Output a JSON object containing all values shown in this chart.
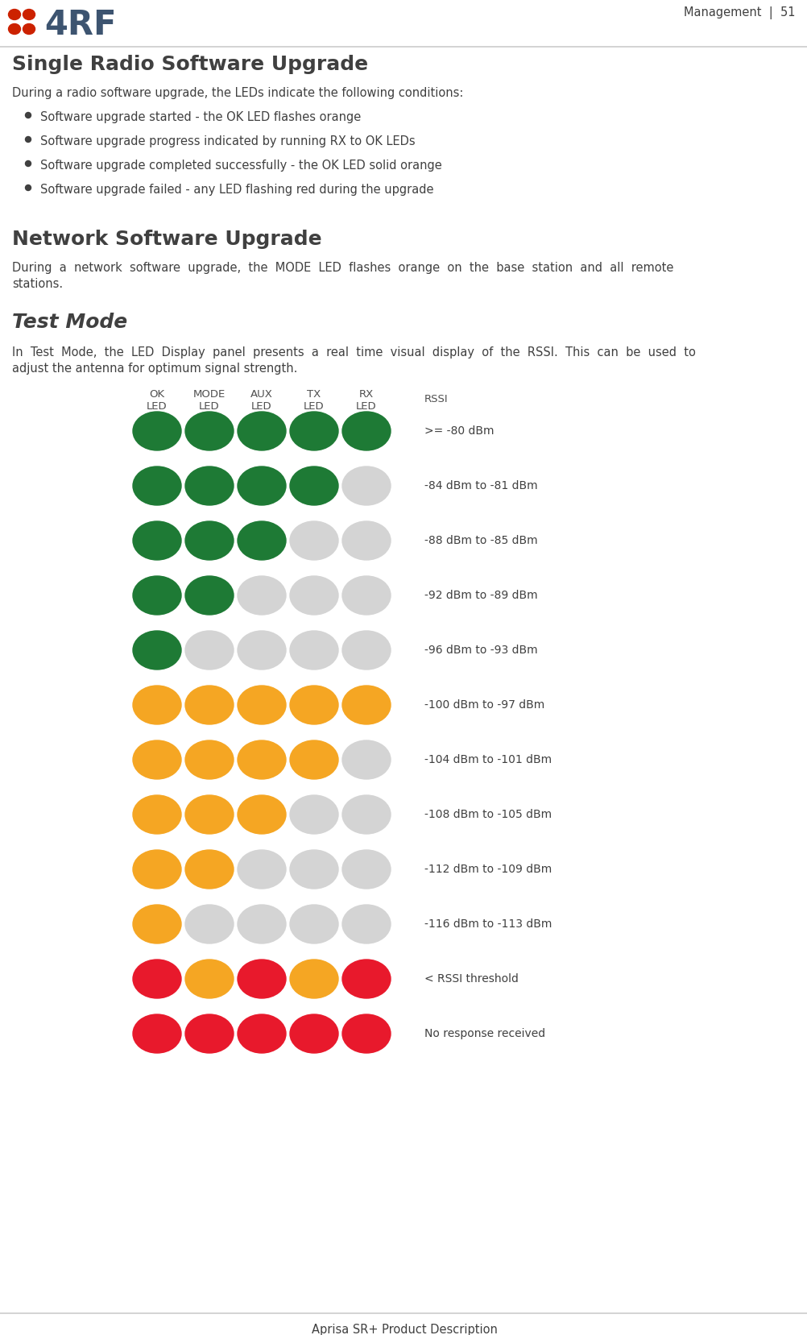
{
  "title_right": "Management  |  51",
  "footer": "Aprisa SR+ Product Description",
  "logo_text": "4RF",
  "heading1": "Single Radio Software Upgrade",
  "para1": "During a radio software upgrade, the LEDs indicate the following conditions:",
  "bullets": [
    "Software upgrade started - the OK LED flashes orange",
    "Software upgrade progress indicated by running RX to OK LEDs",
    "Software upgrade completed successfully - the OK LED solid orange",
    "Software upgrade failed - any LED flashing red during the upgrade"
  ],
  "heading2": "Network Software Upgrade",
  "para2_line1": "During  a  network  software  upgrade,  the  MODE  LED  flashes  orange  on  the  base  station  and  all  remote",
  "para2_line2": "stations.",
  "heading3": "Test Mode",
  "para3_line1": "In  Test  Mode,  the  LED  Display  panel  presents  a  real  time  visual  display  of  the  RSSI.  This  can  be  used  to",
  "para3_line2": "adjust the antenna for optimum signal strength.",
  "col_headers": [
    "OK\nLED",
    "MODE\nLED",
    "AUX\nLED",
    "TX\nLED",
    "RX\nLED",
    "RSSI"
  ],
  "rows": [
    {
      "leds": [
        "green",
        "green",
        "green",
        "green",
        "green"
      ],
      "rssi": ">= -80 dBm"
    },
    {
      "leds": [
        "green",
        "green",
        "green",
        "green",
        "gray"
      ],
      "rssi": "-84 dBm to -81 dBm"
    },
    {
      "leds": [
        "green",
        "green",
        "green",
        "gray",
        "gray"
      ],
      "rssi": "-88 dBm to -85 dBm"
    },
    {
      "leds": [
        "green",
        "green",
        "gray",
        "gray",
        "gray"
      ],
      "rssi": "-92 dBm to -89 dBm"
    },
    {
      "leds": [
        "green",
        "gray",
        "gray",
        "gray",
        "gray"
      ],
      "rssi": "-96 dBm to -93 dBm"
    },
    {
      "leds": [
        "orange",
        "orange",
        "orange",
        "orange",
        "orange"
      ],
      "rssi": "-100 dBm to -97 dBm"
    },
    {
      "leds": [
        "orange",
        "orange",
        "orange",
        "orange",
        "gray"
      ],
      "rssi": "-104 dBm to -101 dBm"
    },
    {
      "leds": [
        "orange",
        "orange",
        "orange",
        "gray",
        "gray"
      ],
      "rssi": "-108 dBm to -105 dBm"
    },
    {
      "leds": [
        "orange",
        "orange",
        "gray",
        "gray",
        "gray"
      ],
      "rssi": "-112 dBm to -109 dBm"
    },
    {
      "leds": [
        "orange",
        "gray",
        "gray",
        "gray",
        "gray"
      ],
      "rssi": "-116 dBm to -113 dBm"
    },
    {
      "leds": [
        "red",
        "orange",
        "red",
        "orange",
        "red"
      ],
      "rssi": "< RSSI threshold"
    },
    {
      "leds": [
        "red",
        "red",
        "red",
        "red",
        "red"
      ],
      "rssi": "No response received"
    }
  ],
  "color_map": {
    "green": "#1e7a35",
    "orange": "#f5a623",
    "gray": "#d4d4d4",
    "red": "#e8192c"
  },
  "bg_color": "#ffffff",
  "text_color": "#404040",
  "header_color": "#505050",
  "logo_red": "#cc2200",
  "logo_blue": "#3d5470",
  "line_color": "#cccccc"
}
